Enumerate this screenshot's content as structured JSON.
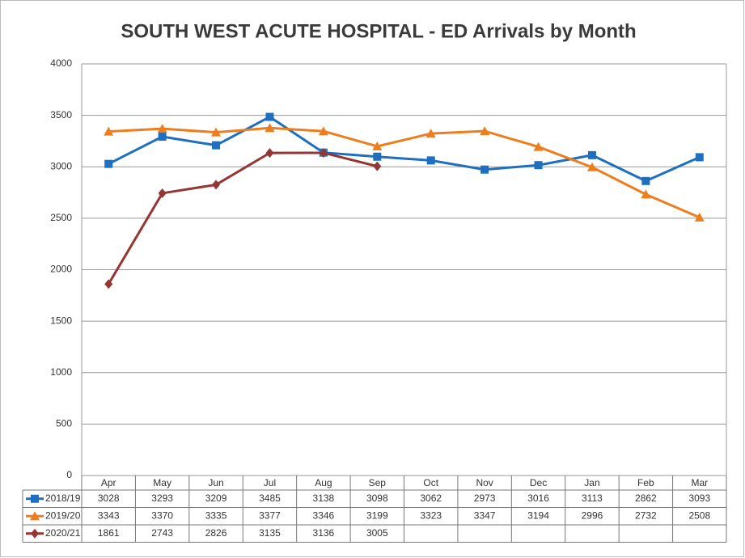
{
  "chart_data": {
    "type": "line",
    "title": "SOUTH WEST ACUTE HOSPITAL - ED Arrivals by Month",
    "categories": [
      "Apr",
      "May",
      "Jun",
      "Jul",
      "Aug",
      "Sep",
      "Oct",
      "Nov",
      "Dec",
      "Jan",
      "Feb",
      "Mar"
    ],
    "series": [
      {
        "name": "2018/19",
        "color": "#1f6fc0",
        "marker": "square",
        "values": [
          3028,
          3293,
          3209,
          3485,
          3138,
          3098,
          3062,
          2973,
          3016,
          3113,
          2862,
          3093
        ]
      },
      {
        "name": "2019/20",
        "color": "#ee7d1e",
        "marker": "triangle",
        "values": [
          3343,
          3370,
          3335,
          3377,
          3346,
          3199,
          3323,
          3347,
          3194,
          2996,
          2732,
          2508
        ]
      },
      {
        "name": "2020/21",
        "color": "#943634",
        "marker": "diamond",
        "values": [
          1861,
          2743,
          2826,
          3135,
          3136,
          3005,
          null,
          null,
          null,
          null,
          null,
          null
        ]
      }
    ],
    "ylim": [
      0,
      4000
    ],
    "yticks": [
      0,
      500,
      1000,
      1500,
      2000,
      2500,
      3000,
      3500,
      4000
    ],
    "grid": true,
    "data_table": true
  }
}
